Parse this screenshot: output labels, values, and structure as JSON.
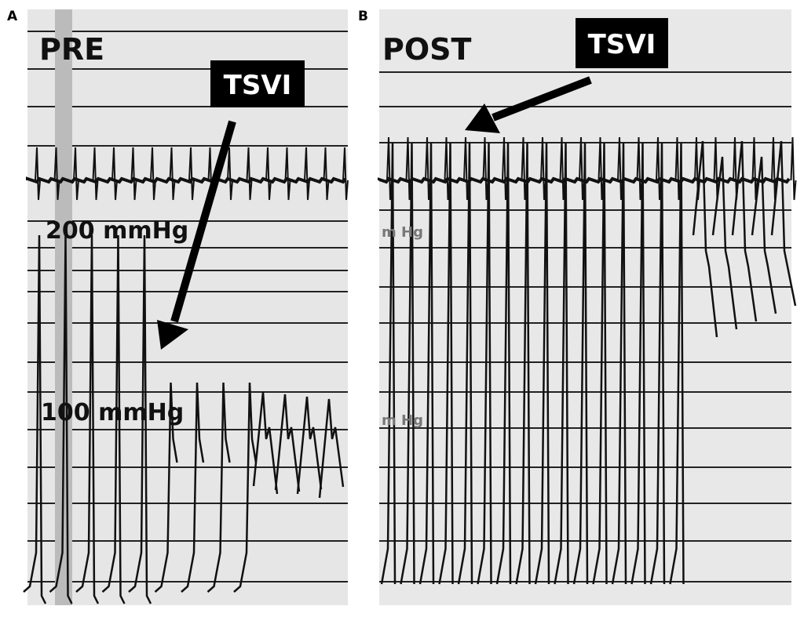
{
  "panels": [
    {
      "letter": "A",
      "label": "PRE",
      "annotation": "TSVI",
      "scale_labels": [
        "200 mmHg",
        "100 mmHg"
      ]
    },
    {
      "letter": "B",
      "label": "POST",
      "annotation": "TSVI",
      "scale_labels": [
        "m Hg",
        "m Hg"
      ]
    }
  ]
}
